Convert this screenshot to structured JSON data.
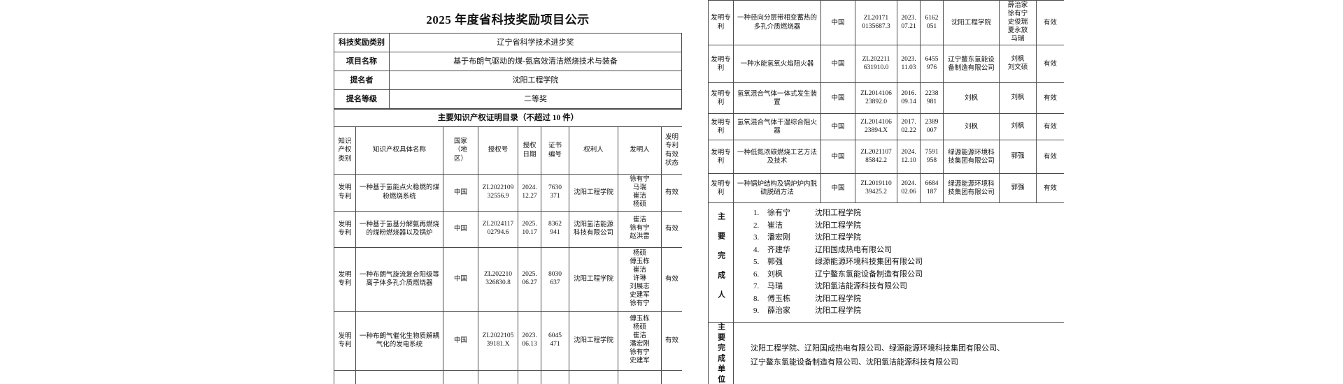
{
  "page1": {
    "title": "2025 年度省科技奖励项目公示",
    "info_rows": [
      {
        "label": "科技奖励类别",
        "value": "辽宁省科学技术进步奖"
      },
      {
        "label": "项目名称",
        "value": "基于布朗气驱动的煤-氨高效清洁燃烧技术与装备"
      },
      {
        "label": "提名者",
        "value": "沈阳工程学院"
      },
      {
        "label": "提名等级",
        "value": "二等奖"
      }
    ],
    "ip_section_title": "主要知识产权证明目录（不超过 10 件）",
    "columns": [
      "知识\n产权\n类别",
      "知识产权具体名称",
      "国家\n（地\n区）",
      "授权号",
      "授权\n日期",
      "证书\n编号",
      "权利人",
      "发明人",
      "发明\n专利\n有效\n状态"
    ],
    "patents": [
      {
        "type": "发明专利",
        "name": "一种基于氢能点火稳燃的煤粉燃烧系统",
        "country": "中国",
        "auth_no": [
          "ZL2022109",
          "32556.9"
        ],
        "date": [
          "2024.",
          "12.27"
        ],
        "cert_no": [
          "7630",
          "371"
        ],
        "owner": "沈阳工程学院",
        "inventors": [
          "徐有宁",
          "马瑞",
          "崔洁",
          "杨硕"
        ],
        "status": "有效"
      },
      {
        "type": "发明专利",
        "name": "一种基于氢基分解氨再燃烧的煤粉燃烧器以及锅炉",
        "country": "中国",
        "auth_no": [
          "ZL2024117",
          "02794.6"
        ],
        "date": [
          "2025.",
          "10.17"
        ],
        "cert_no": [
          "8362",
          "941"
        ],
        "owner": "沈阳氢洁能源科技有限公司",
        "inventors": [
          "崔洁",
          "徐有宁",
          "赵洪雷"
        ],
        "status": "有效"
      },
      {
        "type": "发明专利",
        "name": "一种布朗气旋流复合阳级等离子体多孔介质燃烧器",
        "country": "中国",
        "auth_no": [
          "ZL202210",
          "326830.8"
        ],
        "date": [
          "2025.",
          "06.27"
        ],
        "cert_no": [
          "8030",
          "637"
        ],
        "owner": "沈阳工程学院",
        "inventors": [
          "杨硕",
          "傅玉栋",
          "崔洁",
          "许琳",
          "刘展志",
          "史建军",
          "徐有宁"
        ],
        "status": "有效"
      },
      {
        "type": "发明专利",
        "name": "一种布朗气催化生物质解耦气化的发电系统",
        "country": "中国",
        "auth_no": [
          "ZL2022105",
          "39181.X"
        ],
        "date": [
          "2023.",
          "06.13"
        ],
        "cert_no": [
          "6045",
          "471"
        ],
        "owner": "沈阳工程学院",
        "inventors": [
          "傅玉栋",
          "杨硕",
          "崔洁",
          "潘宏刚",
          "徐有宁",
          "史建军"
        ],
        "status": "有效"
      }
    ]
  },
  "page2": {
    "patents": [
      {
        "type": "发明专利",
        "name": "一种径向分层带相变蓄热的多孔介质燃烧器",
        "country": "中国",
        "auth_no": [
          "ZL20171",
          "0135687.3"
        ],
        "date": [
          "2023.",
          "07.21"
        ],
        "cert_no": [
          "6162",
          "051"
        ],
        "owner": "沈阳工程学院",
        "inventors": [
          "薛治家",
          "徐有宁",
          "史俊瑞",
          "夏永放",
          "马瑞"
        ],
        "status": "有效"
      },
      {
        "type": "发明专利",
        "name": "一种水能氢氧火焰阻火器",
        "country": "中国",
        "auth_no": [
          "ZL202211",
          "631910.0"
        ],
        "date": [
          "2023.",
          "11.03"
        ],
        "cert_no": [
          "6455",
          "976"
        ],
        "owner": "辽宁鳌东氢能设备制造有限公司",
        "inventors": [
          "刘枫",
          "刘文硕"
        ],
        "status": "有效"
      },
      {
        "type": "发明专利",
        "name": "氢氧混合气体一体式发生装置",
        "country": "中国",
        "auth_no": [
          "ZL2014106",
          "23892.0"
        ],
        "date": [
          "2016.",
          "09.14"
        ],
        "cert_no": [
          "2238",
          "981"
        ],
        "owner": "刘枫",
        "inventors": [
          "刘枫"
        ],
        "status": "有效"
      },
      {
        "type": "发明专利",
        "name": "氢氧混合气体干湿综合阻火器",
        "country": "中国",
        "auth_no": [
          "ZL2014106",
          "23894.X"
        ],
        "date": [
          "2017.",
          "02.22"
        ],
        "cert_no": [
          "2389",
          "007"
        ],
        "owner": "刘枫",
        "inventors": [
          "刘枫"
        ],
        "status": "有效"
      },
      {
        "type": "发明专利",
        "name": "一种低氮浓碳燃烧工艺方法及技术",
        "country": "中国",
        "auth_no": [
          "ZL2021107",
          "85842.2"
        ],
        "date": [
          "2024.",
          "12.10"
        ],
        "cert_no": [
          "7591",
          "958"
        ],
        "owner": "绿源能源环境科技集团有限公司",
        "inventors": [
          "郭强"
        ],
        "status": "有效"
      },
      {
        "type": "发明专利",
        "name": "一种锅炉结构及锅炉炉内脱硫脱硝方法",
        "country": "中国",
        "auth_no": [
          "ZL2019110",
          "39425.2"
        ],
        "date": [
          "2024.",
          "02.06"
        ],
        "cert_no": [
          "6684",
          "187"
        ],
        "owner": "绿源能源环境科技集团有限公司",
        "inventors": [
          "郭强"
        ],
        "status": "有效"
      }
    ],
    "completers": {
      "label": "主要完成人",
      "items": [
        {
          "num": "1.",
          "name": "徐有宁",
          "org": "沈阳工程学院"
        },
        {
          "num": "2.",
          "name": "崔洁",
          "org": "沈阳工程学院"
        },
        {
          "num": "3.",
          "name": "潘宏刚",
          "org": "沈阳工程学院"
        },
        {
          "num": "4.",
          "name": "齐建华",
          "org": "辽阳国成热电有限公司"
        },
        {
          "num": "5.",
          "name": "郭强",
          "org": "绿源能源环境科技集团有限公司"
        },
        {
          "num": "6.",
          "name": "刘枫",
          "org": "辽宁鳌东氢能设备制造有限公司"
        },
        {
          "num": "7.",
          "name": "马瑞",
          "org": "沈阳氢洁能源科技有限公司"
        },
        {
          "num": "8.",
          "name": "傅玉栋",
          "org": "沈阳工程学院"
        },
        {
          "num": "9.",
          "name": "薛治家",
          "org": "沈阳工程学院"
        }
      ]
    },
    "units": {
      "label": "主要完成单位",
      "text_lines": [
        "沈阳工程学院、辽阳国成热电有限公司、绿源能源环境科技集团有限公司、",
        "辽宁鳌东氢能设备制造有限公司、沈阳氢洁能源科技有限公司"
      ]
    }
  }
}
